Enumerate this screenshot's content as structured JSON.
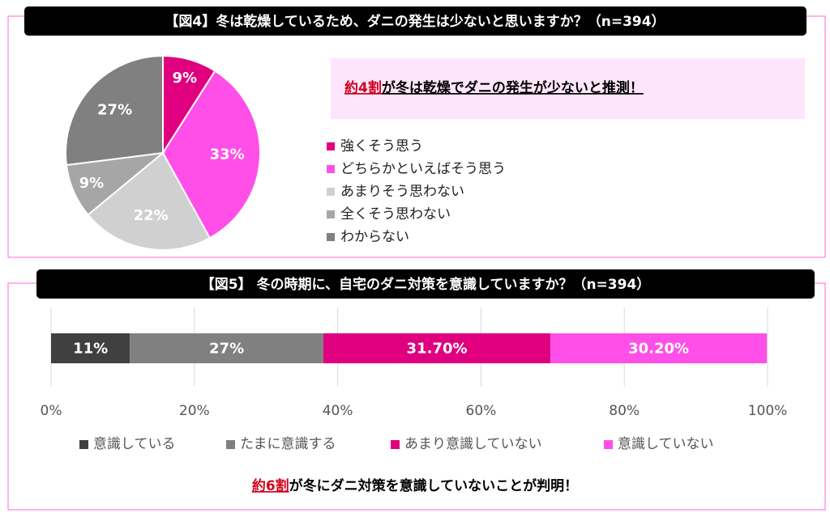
{
  "chart_data": [
    {
      "type": "pie",
      "title": "【図4】冬は乾燥しているため、ダニの発生は少ないと思いますか？（n=394）",
      "categories": [
        "強くそう思う",
        "どちらかといえばそう思う",
        "あまりそう思わない",
        "全くそう思わない",
        "わからない"
      ],
      "values": [
        9,
        33,
        22,
        9,
        27
      ],
      "value_labels": [
        "9%",
        "33%",
        "22%",
        "9%",
        "27%"
      ],
      "colors": [
        "#e0007f",
        "#ff4fe8",
        "#d0d0d0",
        "#a6a6a6",
        "#808080"
      ],
      "annotation": {
        "highlight": "約4割",
        "text": "が冬は乾燥でダニの発生が少ないと推測！"
      }
    },
    {
      "type": "bar",
      "orientation": "horizontal",
      "stacked": true,
      "title": "【図5】 冬の時期に、自宅のダニ対策を意識していますか？（n=394）",
      "categories": [
        null
      ],
      "series": [
        {
          "name": "意識している",
          "color": "#404040",
          "values": [
            11
          ],
          "value_labels": [
            "11%"
          ]
        },
        {
          "name": "たまに意識する",
          "color": "#808080",
          "values": [
            27
          ],
          "value_labels": [
            "27%"
          ]
        },
        {
          "name": "あまり意識していない",
          "color": "#e0007f",
          "values": [
            31.7
          ],
          "value_labels": [
            "31.70%"
          ]
        },
        {
          "name": "意識していない",
          "color": "#ff4fe8",
          "values": [
            30.2
          ],
          "value_labels": [
            "30.20%"
          ]
        }
      ],
      "xlim": [
        0,
        100
      ],
      "xticks": [
        {
          "value": 0,
          "label": "0%"
        },
        {
          "value": 20,
          "label": "20%"
        },
        {
          "value": 40,
          "label": "40%"
        },
        {
          "value": 60,
          "label": "60%"
        },
        {
          "value": 80,
          "label": "80%"
        },
        {
          "value": 100,
          "label": "100%"
        }
      ],
      "grid": true,
      "annotation": {
        "highlight": "約6割",
        "text": "が冬にダニ対策を意識していないことが判明！"
      }
    }
  ]
}
